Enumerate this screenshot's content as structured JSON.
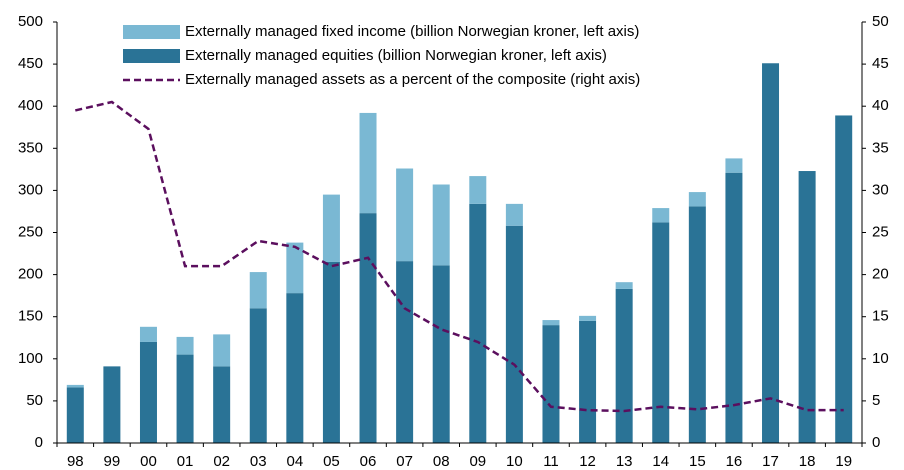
{
  "chart_data": {
    "type": "bar",
    "categories": [
      "98",
      "99",
      "00",
      "01",
      "02",
      "03",
      "04",
      "05",
      "06",
      "07",
      "08",
      "09",
      "10",
      "11",
      "12",
      "13",
      "14",
      "15",
      "16",
      "17",
      "18",
      "19"
    ],
    "series": [
      {
        "name": "Externally managed fixed income (billion Norwegian kroner, left axis)",
        "color": "#7ab8d3",
        "type": "bar",
        "values": [
          3,
          0,
          18,
          21,
          38,
          43,
          60,
          80,
          119,
          110,
          96,
          33,
          26,
          6,
          6,
          8,
          17,
          17,
          17,
          0,
          0,
          0
        ]
      },
      {
        "name": "Externally managed equities (billion Norwegian kroner, left axis)",
        "color": "#2a7396",
        "type": "bar",
        "values": [
          66,
          91,
          120,
          105,
          91,
          160,
          178,
          215,
          273,
          216,
          211,
          284,
          258,
          140,
          145,
          183,
          262,
          281,
          321,
          451,
          323,
          389
        ]
      },
      {
        "name": "Externally managed assets as a percent of the composite (right axis)",
        "color": "#5b0f5e",
        "type": "line",
        "axis": "y2",
        "values": [
          39.5,
          40.5,
          37.3,
          21,
          21,
          24,
          23.3,
          21,
          22,
          16,
          13.5,
          12,
          9.3,
          4.3,
          3.9,
          3.8,
          4.3,
          4,
          4.5,
          5.3,
          3.9,
          3.9
        ]
      }
    ],
    "stacked": true,
    "ylim": [
      0,
      500
    ],
    "yticks": [
      0,
      50,
      100,
      150,
      200,
      250,
      300,
      350,
      400,
      450,
      500
    ],
    "y2lim": [
      0,
      50
    ],
    "y2ticks": [
      0,
      5,
      10,
      15,
      20,
      25,
      30,
      35,
      40,
      45,
      50
    ],
    "grid": false,
    "legend": "top"
  }
}
